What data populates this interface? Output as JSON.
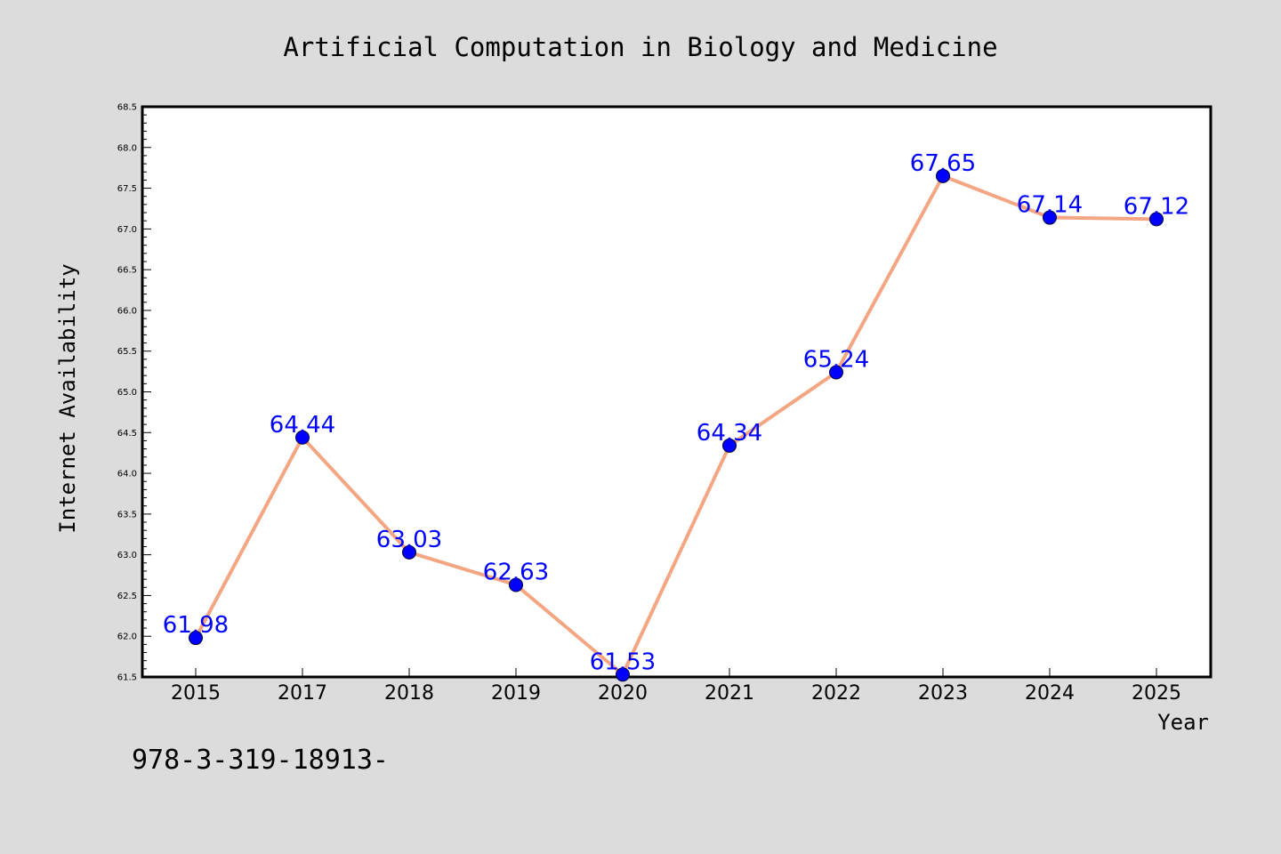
{
  "chart_data": {
    "type": "line",
    "title": "Artificial Computation in Biology and Medicine",
    "xlabel": "Year",
    "ylabel": "Internet Availability",
    "categories": [
      "2015",
      "2017",
      "2018",
      "2019",
      "2020",
      "2021",
      "2022",
      "2023",
      "2024",
      "2025"
    ],
    "values": [
      61.98,
      64.44,
      63.03,
      62.63,
      61.53,
      64.34,
      65.24,
      67.65,
      67.14,
      67.12
    ],
    "data_labels": [
      "61.98",
      "64.44",
      "63.03",
      "62.63",
      "61.53",
      "64.34",
      "65.24",
      "67.65",
      "67.14",
      "67.12"
    ],
    "ylim": [
      61.5,
      68.5
    ],
    "y_ticks": [
      "61.5",
      "62.0",
      "62.5",
      "63.0",
      "63.5",
      "64.0",
      "64.5",
      "65.0",
      "65.5",
      "66.0",
      "66.5",
      "67.0",
      "67.5",
      "68.0",
      "68.5"
    ],
    "grid": false,
    "legend": "none",
    "line_color": "#f4a582",
    "marker_color": "#0000ff",
    "label_color": "#0000ff"
  },
  "footnote": "978-3-319-18913-"
}
